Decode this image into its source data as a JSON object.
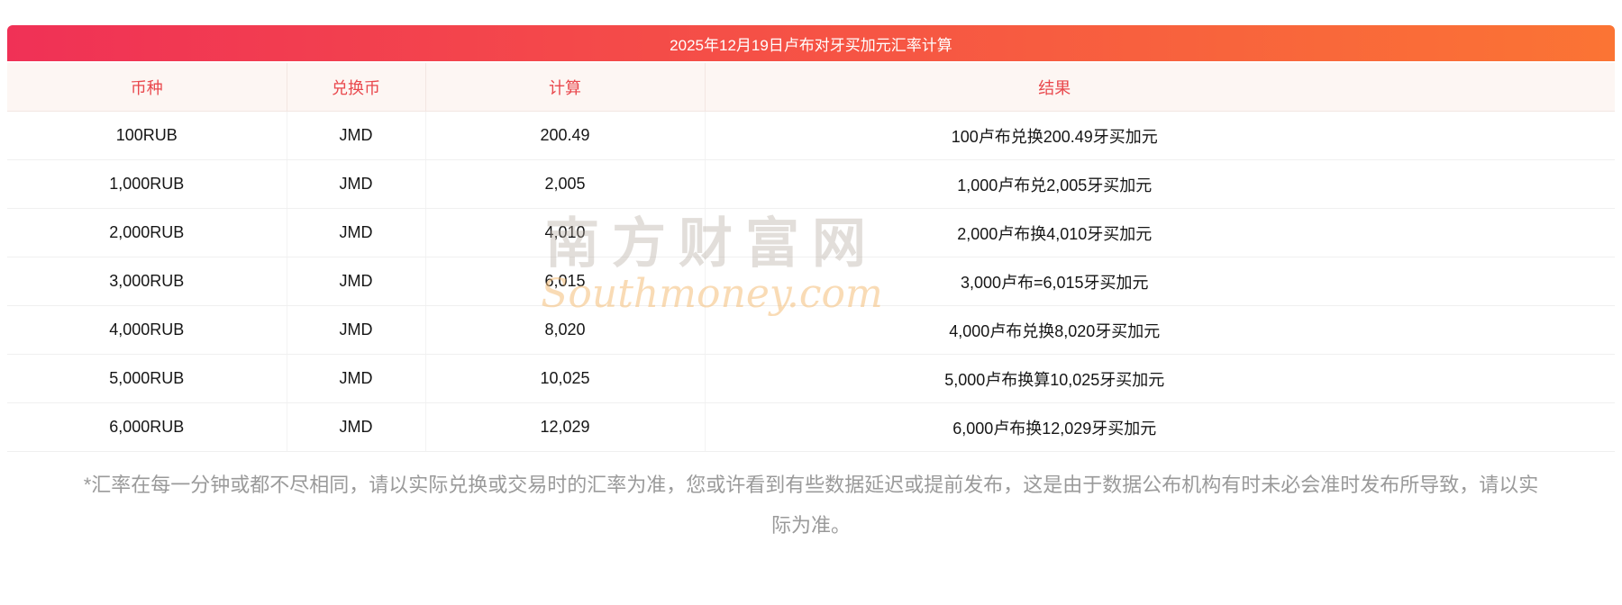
{
  "header": {
    "title": "2025年12月19日卢布对牙买加元汇率计算"
  },
  "table": {
    "columns": [
      "币种",
      "兑换币",
      "计算",
      "结果"
    ],
    "rows": [
      [
        "100RUB",
        "JMD",
        "200.49",
        "100卢布兑换200.49牙买加元"
      ],
      [
        "1,000RUB",
        "JMD",
        "2,005",
        "1,000卢布兑2,005牙买加元"
      ],
      [
        "2,000RUB",
        "JMD",
        "4,010",
        "2,000卢布换4,010牙买加元"
      ],
      [
        "3,000RUB",
        "JMD",
        "6,015",
        "3,000卢布=6,015牙买加元"
      ],
      [
        "4,000RUB",
        "JMD",
        "8,020",
        "4,000卢布兑换8,020牙买加元"
      ],
      [
        "5,000RUB",
        "JMD",
        "10,025",
        "5,000卢布换算10,025牙买加元"
      ],
      [
        "6,000RUB",
        "JMD",
        "12,029",
        "6,000卢布换12,029牙买加元"
      ]
    ]
  },
  "watermark": {
    "line1": "南方财富网",
    "line2": "Southmoney.com"
  },
  "footer": {
    "note": "*汇率在每一分钟或都不尽相同，请以实际兑换或交易时的汇率为准，您或许看到有些数据延迟或提前发布，这是由于数据公布机构有时未必会准时发布所导致，请以实际为准。"
  },
  "colors": {
    "header_gradient_start": "#f03156",
    "header_gradient_end": "#fb7434",
    "column_header_bg": "#fdf6f3",
    "column_header_text": "#e9484d",
    "row_border": "#f0f0f0",
    "body_text": "#161616",
    "footer_text": "#9a9a9a"
  }
}
